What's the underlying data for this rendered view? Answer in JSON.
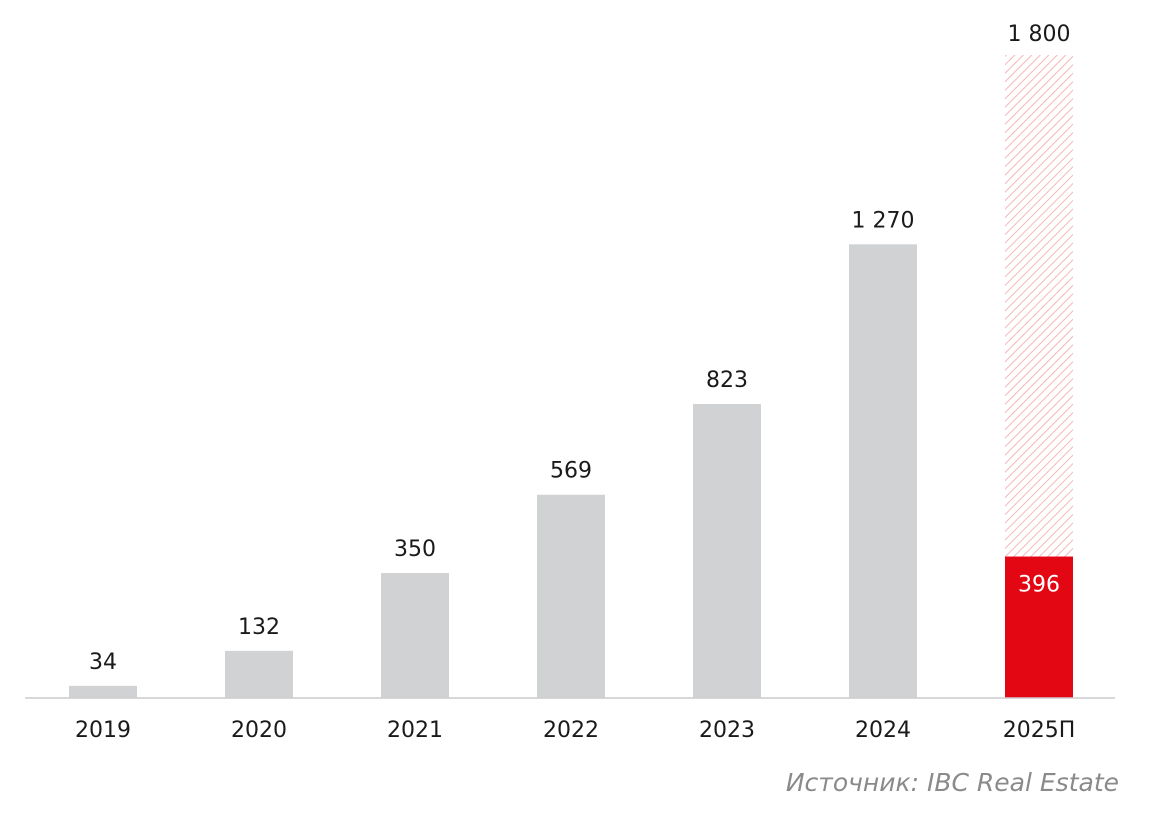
{
  "colors": {
    "bar": "#d1d2d4",
    "highlight": "#e30613",
    "forecast_hatch": "#f3b8b8",
    "axis": "#cccccc",
    "text": "#1a1a1a"
  },
  "chart_data": {
    "type": "bar",
    "categories": [
      "2019",
      "2020",
      "2021",
      "2022",
      "2023",
      "2024",
      "2025П"
    ],
    "values": [
      34,
      132,
      350,
      569,
      823,
      1270,
      396
    ],
    "value_labels": [
      "34",
      "132",
      "350",
      "569",
      "823",
      "1 270",
      "396"
    ],
    "forecast": {
      "category": "2025П",
      "value": 1800,
      "label": "1 800"
    },
    "ylim": [
      0,
      1800
    ],
    "grid": false,
    "legend": "none"
  },
  "source": "Источник: IBC Real Estate"
}
